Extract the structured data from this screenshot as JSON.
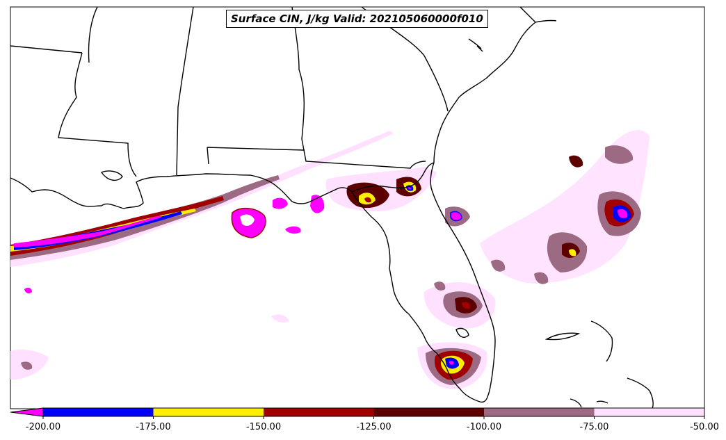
{
  "title": "Surface CIN, J/kg Valid: 202105060000f010",
  "legend": {
    "ticks": [
      "-200.00",
      "-175.00",
      "-150.00",
      "-125.00",
      "-100.00",
      "-75.00",
      "-50.00"
    ],
    "bins": [
      {
        "from": -200,
        "to": -175,
        "color": "#0000ff"
      },
      {
        "from": -175,
        "to": -150,
        "color": "#ffee00"
      },
      {
        "from": -150,
        "to": -125,
        "color": "#a00000"
      },
      {
        "from": -125,
        "to": -100,
        "color": "#5c0000"
      },
      {
        "from": -100,
        "to": -75,
        "color": "#9c6a82"
      },
      {
        "from": -75,
        "to": -50,
        "color": "#ffe0ff"
      }
    ],
    "under_color": "#ff00ff"
  },
  "colors": {
    "under": "#ff00ff",
    "blue": "#0000ff",
    "yellow": "#ffee00",
    "red": "#a00000",
    "darkred": "#5c0000",
    "mauve": "#9c6a82",
    "pink": "#ffe0ff",
    "land_outline": "#000000"
  }
}
